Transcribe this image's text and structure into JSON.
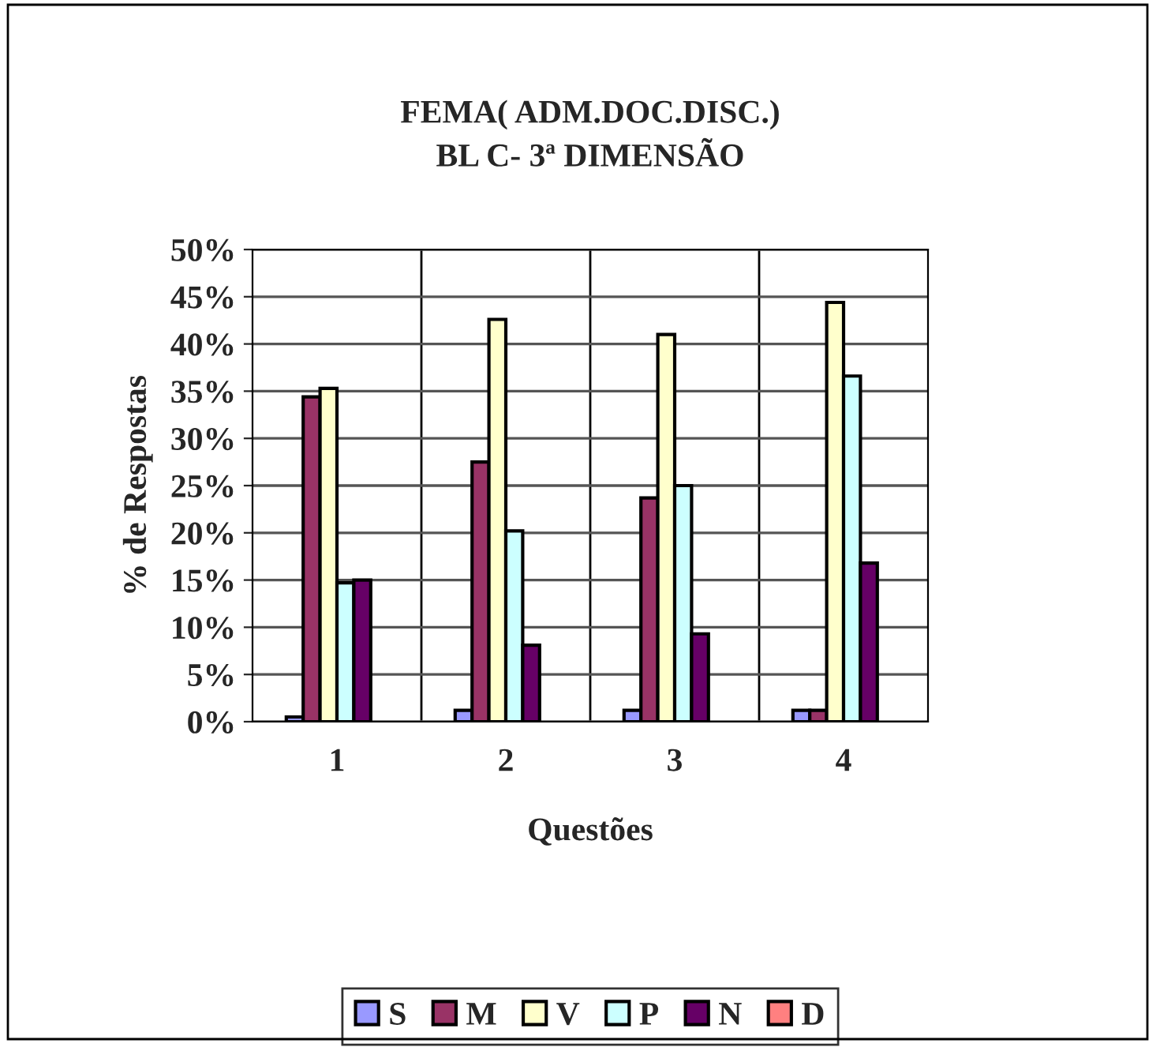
{
  "chart_data": {
    "type": "bar",
    "title": "FEMA( ADM.DOC.DISC.)\nBL C- 3ª DIMENSÃO",
    "xlabel": "Questões",
    "ylabel": "% de Respostas",
    "categories": [
      "1",
      "2",
      "3",
      "4"
    ],
    "series": [
      {
        "name": "S",
        "color": "#9999ff",
        "values": [
          0.5,
          1.2,
          1.2,
          1.2
        ]
      },
      {
        "name": "M",
        "color": "#993366",
        "values": [
          34.4,
          27.5,
          23.7,
          1.2
        ]
      },
      {
        "name": "V",
        "color": "#ffffcc",
        "values": [
          35.3,
          42.6,
          41.0,
          44.4
        ]
      },
      {
        "name": "P",
        "color": "#ccffff",
        "values": [
          14.7,
          20.2,
          25.0,
          36.6
        ]
      },
      {
        "name": "N",
        "color": "#660066",
        "values": [
          15.0,
          8.1,
          9.3,
          16.8
        ]
      },
      {
        "name": "D",
        "color": "#ff8080",
        "values": [
          null,
          null,
          null,
          null
        ]
      }
    ],
    "ylim": [
      0,
      50
    ],
    "yticks": [
      {
        "value": 0,
        "label": "0%"
      },
      {
        "value": 5,
        "label": "5%"
      },
      {
        "value": 10,
        "label": "10%"
      },
      {
        "value": 15,
        "label": "15%"
      },
      {
        "value": 20,
        "label": "20%"
      },
      {
        "value": 25,
        "label": "25%"
      },
      {
        "value": 30,
        "label": "30%"
      },
      {
        "value": 35,
        "label": "35%"
      },
      {
        "value": 40,
        "label": "40%"
      },
      {
        "value": 45,
        "label": "45%"
      },
      {
        "value": 50,
        "label": "50%"
      }
    ],
    "grid": true,
    "legend": "bottom"
  }
}
